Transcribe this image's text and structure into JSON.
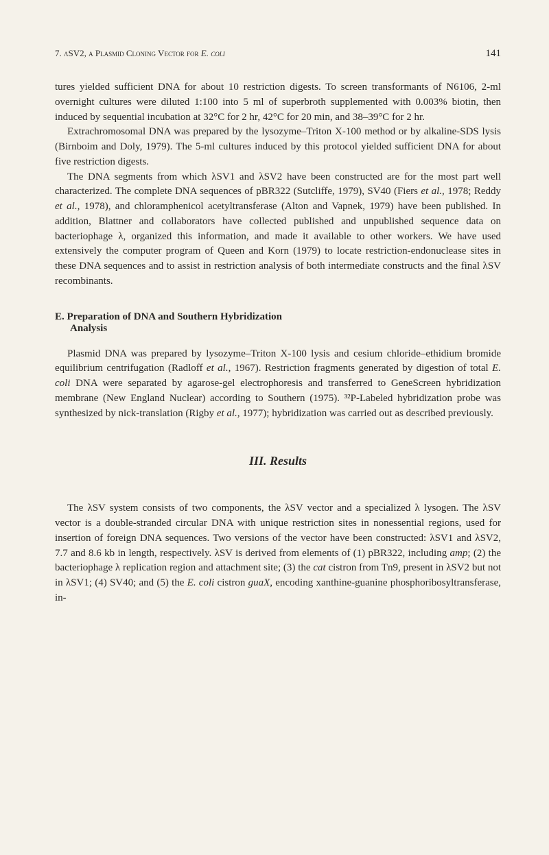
{
  "header": {
    "chapter_ref": "7. λSV2, a Plasmid Cloning Vector for",
    "chapter_ref_italic": "E. coli",
    "page_number": "141"
  },
  "paragraphs": {
    "p1": "tures yielded sufficient DNA for about 10 restriction digests. To screen transformants of N6106, 2-ml overnight cultures were diluted 1:100 into 5 ml of superbroth supplemented with 0.003% biotin, then induced by sequential incubation at 32°C for 2 hr, 42°C for 20 min, and 38–39°C for 2 hr.",
    "p2": "Extrachromosomal DNA was prepared by the lysozyme–Triton X-100 method or by alkaline-SDS lysis (Birnboim and Doly, 1979). The 5-ml cultures induced by this protocol yielded sufficient DNA for about five restriction digests.",
    "p3_part1": "The DNA segments from which λSV1 and λSV2 have been constructed are for the most part well characterized. The complete DNA sequences of pBR322 (Sutcliffe, 1979), SV40 (Fiers ",
    "p3_italic1": "et al.,",
    "p3_part2": " 1978; Reddy ",
    "p3_italic2": "et al.,",
    "p3_part3": " 1978), and chloramphenicol acetyltransferase (Alton and Vapnek, 1979) have been published. In addition, Blattner and collaborators have collected published and unpublished sequence data on bacteriophage λ, organized this information, and made it available to other workers. We have used extensively the computer program of Queen and Korn (1979) to locate restriction-endonuclease sites in these DNA sequences and to assist in restriction analysis of both intermediate constructs and the final λSV recombinants."
  },
  "section_e": {
    "heading_line1": "E. Preparation of DNA and Southern Hybridization",
    "heading_line2": "Analysis",
    "p1_part1": "Plasmid DNA was prepared by lysozyme–Triton X-100 lysis and cesium chloride–ethidium bromide equilibrium centrifugation (Radloff ",
    "p1_italic1": "et al.,",
    "p1_part2": " 1967). Restriction fragments generated by digestion of total ",
    "p1_italic2": "E. coli",
    "p1_part3": " DNA were separated by agarose-gel electrophoresis and transferred to GeneScreen hybridization membrane (New England Nuclear) according to Southern (1975). ³²P-Labeled hybridization probe was synthesized by nick-translation (Rigby ",
    "p1_italic3": "et al.,",
    "p1_part4": " 1977); hybridization was carried out as described previously."
  },
  "results": {
    "heading": "III. Results",
    "p1_part1": "The λSV system consists of two components, the λSV vector and a specialized λ lysogen. The λSV vector is a double-stranded circular DNA with unique restriction sites in nonessential regions, used for insertion of foreign DNA sequences. Two versions of the vector have been constructed: λSV1 and λSV2, 7.7 and 8.6 kb in length, respectively. λSV is derived from elements of (1) pBR322, including ",
    "p1_italic1": "amp",
    "p1_part2": "; (2) the bacteriophage λ replication region and attachment site; (3) the ",
    "p1_italic2": "cat",
    "p1_part3": " cistron from Tn9, present in λSV2 but not in λSV1; (4) SV40; and (5) the ",
    "p1_italic3": "E. coli",
    "p1_part4": " cistron ",
    "p1_italic4": "guaX,",
    "p1_part5": " encoding xanthine-guanine phosphoribosyltransferase, in-"
  }
}
